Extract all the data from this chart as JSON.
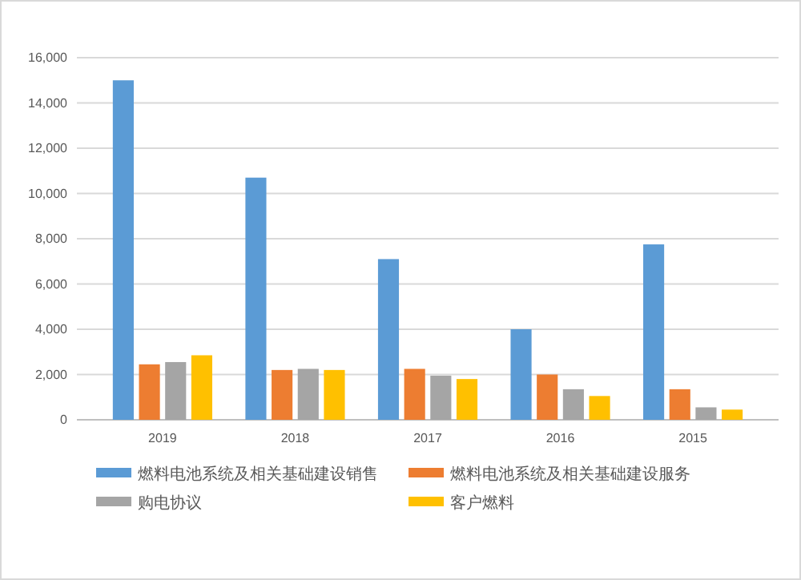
{
  "chart_data": {
    "type": "bar",
    "categories": [
      "2019",
      "2018",
      "2017",
      "2016",
      "2015"
    ],
    "series": [
      {
        "name": "燃料电池系统及相关基础建设销售",
        "color": "#5b9bd5",
        "values": [
          15000,
          10700,
          7100,
          4000,
          7750
        ]
      },
      {
        "name": "燃料电池系统及相关基础建设服务",
        "color": "#ed7d31",
        "values": [
          2450,
          2200,
          2250,
          2000,
          1350
        ]
      },
      {
        "name": "购电协议",
        "color": "#a5a5a5",
        "values": [
          2550,
          2250,
          1950,
          1350,
          550
        ]
      },
      {
        "name": "客户燃料",
        "color": "#ffc000",
        "values": [
          2850,
          2200,
          1800,
          1050,
          450
        ]
      }
    ],
    "ylim": [
      0,
      16000
    ],
    "yticks": [
      {
        "value": 0,
        "label": "0"
      },
      {
        "value": 2000,
        "label": "2,000"
      },
      {
        "value": 4000,
        "label": "4,000"
      },
      {
        "value": 6000,
        "label": "6,000"
      },
      {
        "value": 8000,
        "label": "8,000"
      },
      {
        "value": 10000,
        "label": "10,000"
      },
      {
        "value": 12000,
        "label": "12,000"
      },
      {
        "value": 14000,
        "label": "14,000"
      },
      {
        "value": 16000,
        "label": "16,000"
      }
    ],
    "grid": "y",
    "legend": "bottom"
  }
}
